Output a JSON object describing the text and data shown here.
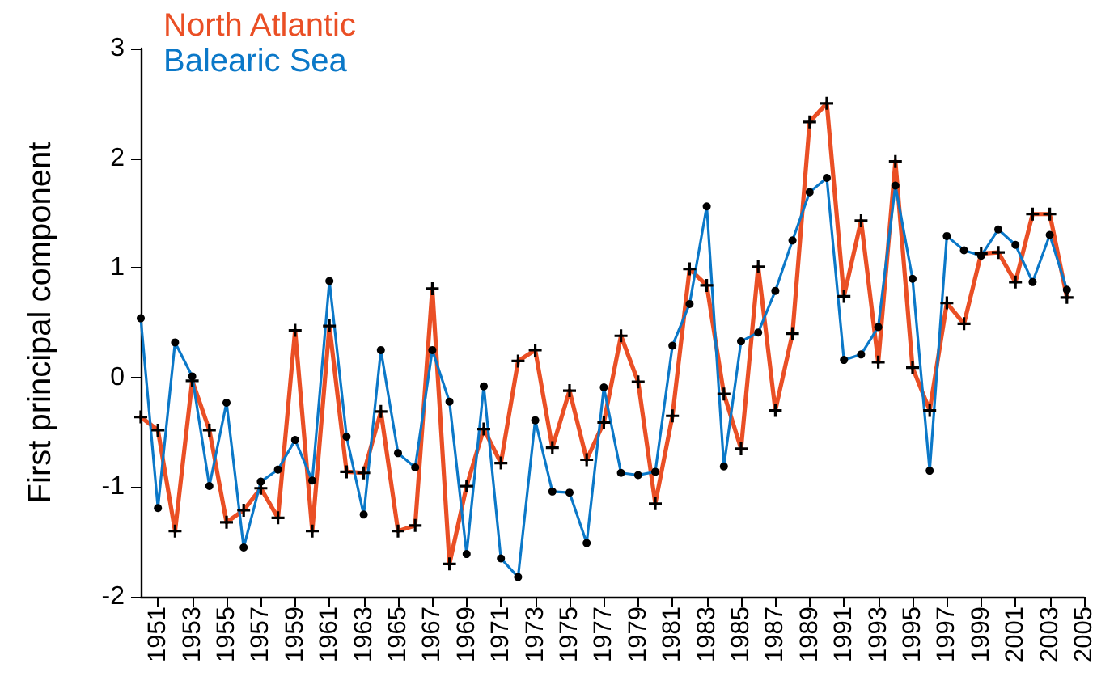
{
  "chart_data": {
    "type": "line",
    "ylabel": "First principal component",
    "x": [
      1950,
      1951,
      1952,
      1953,
      1954,
      1955,
      1956,
      1957,
      1958,
      1959,
      1960,
      1961,
      1962,
      1963,
      1964,
      1965,
      1966,
      1967,
      1968,
      1969,
      1970,
      1971,
      1972,
      1973,
      1974,
      1975,
      1976,
      1977,
      1978,
      1979,
      1980,
      1981,
      1982,
      1983,
      1984,
      1985,
      1986,
      1987,
      1988,
      1989,
      1990,
      1991,
      1992,
      1993,
      1994,
      1995,
      1996,
      1997,
      1998,
      1999,
      2000,
      2001,
      2002,
      2003,
      2004
    ],
    "series": [
      {
        "name": "North Atlantic",
        "color": "#ea4f25",
        "marker": "cross",
        "values": [
          -0.36,
          -0.48,
          -1.4,
          -0.03,
          -0.48,
          -1.32,
          -1.21,
          -1.01,
          -1.28,
          0.43,
          -1.4,
          0.47,
          -0.86,
          -0.87,
          -0.31,
          -1.4,
          -1.35,
          0.81,
          -1.7,
          -0.99,
          -0.47,
          -0.78,
          0.15,
          0.25,
          -0.64,
          -0.12,
          -0.75,
          -0.41,
          0.38,
          -0.04,
          -1.15,
          -0.35,
          0.99,
          0.84,
          -0.15,
          -0.65,
          1.01,
          -0.3,
          0.4,
          2.33,
          2.5,
          0.74,
          1.43,
          0.14,
          1.97,
          0.09,
          -0.3,
          0.68,
          0.49,
          1.13,
          1.14,
          0.87,
          1.49,
          1.49,
          0.73
        ]
      },
      {
        "name": "Balearic Sea",
        "color": "#0b78c8",
        "marker": "circle",
        "values": [
          0.54,
          -1.19,
          0.32,
          0.01,
          -0.99,
          -0.23,
          -1.55,
          -0.95,
          -0.84,
          -0.57,
          -0.94,
          0.88,
          -0.54,
          -1.25,
          0.25,
          -0.69,
          -0.82,
          0.25,
          -0.22,
          -1.61,
          -0.08,
          -1.65,
          -1.82,
          -0.39,
          -1.04,
          -1.05,
          -1.51,
          -0.09,
          -0.87,
          -0.89,
          -0.86,
          0.29,
          0.67,
          1.56,
          -0.81,
          0.33,
          0.41,
          0.79,
          1.25,
          1.69,
          1.82,
          0.16,
          0.21,
          0.46,
          1.75,
          0.9,
          -0.85,
          1.29,
          1.16,
          1.11,
          1.35,
          1.21,
          0.87,
          1.3,
          0.8
        ]
      }
    ],
    "xlim": [
      1950,
      2005
    ],
    "xticks": [
      1951,
      1953,
      1955,
      1957,
      1959,
      1961,
      1963,
      1965,
      1967,
      1969,
      1971,
      1973,
      1975,
      1977,
      1979,
      1981,
      1983,
      1985,
      1987,
      1989,
      1991,
      1993,
      1995,
      1997,
      1999,
      2001,
      2003,
      2005
    ],
    "ylim": [
      -2,
      3
    ],
    "yticks": [
      -2,
      -1,
      0,
      1,
      2,
      3
    ],
    "grid": false,
    "legend": "top left"
  }
}
